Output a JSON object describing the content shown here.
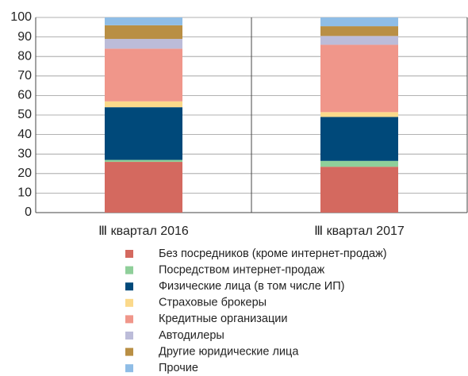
{
  "chart_data": {
    "type": "stacked_bar",
    "categories": [
      "Ⅲ квартал 2016",
      "Ⅲ квартал 2017"
    ],
    "series": [
      {
        "name": "Без посредников (кроме интернет-продаж)",
        "color": "#d4695f",
        "values": [
          26,
          23.5
        ]
      },
      {
        "name": "Посредством интернет-продаж",
        "color": "#8fcf9a",
        "values": [
          1,
          3
        ]
      },
      {
        "name": "Физические лица (в том числе ИП)",
        "color": "#00497a",
        "values": [
          27,
          22.5
        ]
      },
      {
        "name": "Страховые брокеры",
        "color": "#fbd98b",
        "values": [
          3,
          2.5
        ]
      },
      {
        "name": "Кредитные организации",
        "color": "#f0968a",
        "values": [
          27,
          34.5
        ]
      },
      {
        "name": "Автодилеры",
        "color": "#bcbcd9",
        "values": [
          5,
          4.5
        ]
      },
      {
        "name": "Другие юридические лица",
        "color": "#b98f44",
        "values": [
          7,
          5
        ]
      },
      {
        "name": "Прочие",
        "color": "#8fbde6",
        "values": [
          4,
          4.5
        ]
      }
    ],
    "ylim": [
      0,
      100
    ],
    "yticks": [
      0,
      10,
      20,
      30,
      40,
      50,
      60,
      70,
      80,
      90,
      100
    ],
    "grid": true
  }
}
